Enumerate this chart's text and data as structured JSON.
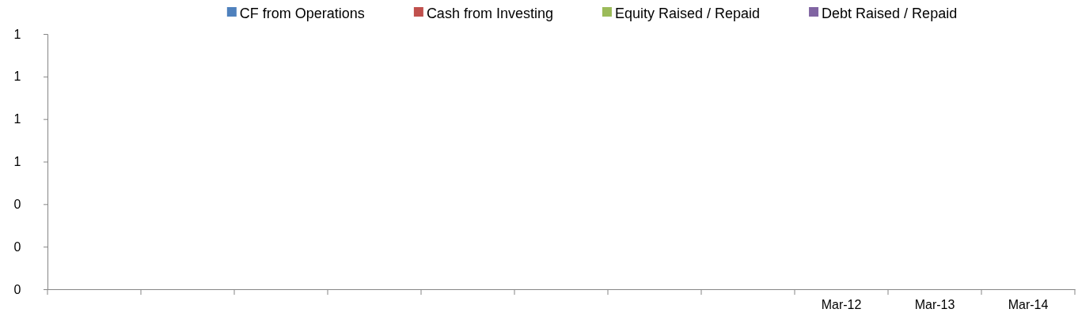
{
  "chart_data": {
    "type": "bar",
    "categories": [
      null,
      null,
      null,
      null,
      null,
      null,
      null,
      null,
      "Mar-12",
      "Mar-13",
      "Mar-14"
    ],
    "series": [
      {
        "name": "CF from Operations",
        "color": "#4f81bd",
        "values": [
          null,
          null,
          null,
          null,
          null,
          null,
          null,
          null,
          null,
          null,
          null
        ]
      },
      {
        "name": "Cash from Investing",
        "color": "#c0504d",
        "values": [
          null,
          null,
          null,
          null,
          null,
          null,
          null,
          null,
          null,
          null,
          null
        ]
      },
      {
        "name": "Equity Raised / Repaid",
        "color": "#9bbb59",
        "values": [
          null,
          null,
          null,
          null,
          null,
          null,
          null,
          null,
          null,
          null,
          null
        ]
      },
      {
        "name": "Debt Raised / Repaid",
        "color": "#8064a2",
        "values": [
          null,
          null,
          null,
          null,
          null,
          null,
          null,
          null,
          null,
          null,
          null
        ]
      }
    ],
    "ylim": [
      0,
      1.2
    ],
    "yticks": [
      {
        "value": 0,
        "label": "0"
      },
      {
        "value": 0.2,
        "label": "0"
      },
      {
        "value": 0.4,
        "label": "0"
      },
      {
        "value": 0.6,
        "label": "1"
      },
      {
        "value": 0.8,
        "label": "1"
      },
      {
        "value": 1.0,
        "label": "1"
      },
      {
        "value": 1.2,
        "label": "1"
      }
    ],
    "grid": false,
    "legend": "top"
  }
}
